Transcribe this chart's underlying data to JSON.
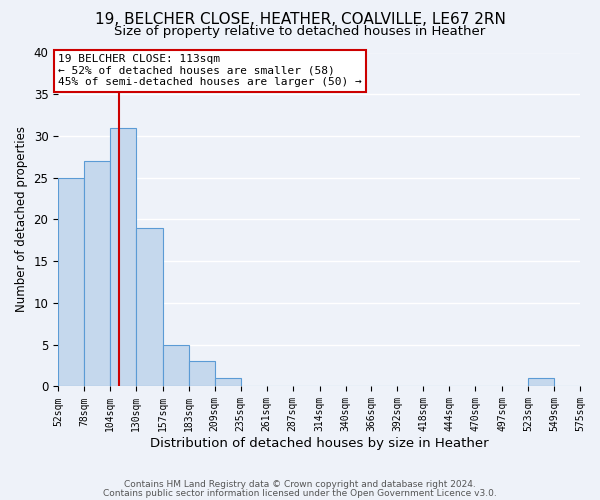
{
  "title": "19, BELCHER CLOSE, HEATHER, COALVILLE, LE67 2RN",
  "subtitle": "Size of property relative to detached houses in Heather",
  "xlabel": "Distribution of detached houses by size in Heather",
  "ylabel": "Number of detached properties",
  "footnote1": "Contains HM Land Registry data © Crown copyright and database right 2024.",
  "footnote2": "Contains public sector information licensed under the Open Government Licence v3.0.",
  "bin_edges": [
    52,
    78,
    104,
    130,
    157,
    183,
    209,
    235,
    261,
    287,
    314,
    340,
    366,
    392,
    418,
    444,
    470,
    497,
    523,
    549,
    575
  ],
  "bar_heights": [
    25,
    27,
    31,
    19,
    5,
    3,
    1,
    0,
    0,
    0,
    0,
    0,
    0,
    0,
    0,
    0,
    0,
    0,
    1,
    0
  ],
  "bar_color": "#c5d8ed",
  "bar_edgecolor": "#5b9bd5",
  "property_size": 113,
  "vline_color": "#cc0000",
  "ylim": [
    0,
    40
  ],
  "annotation_title": "19 BELCHER CLOSE: 113sqm",
  "annotation_line1": "← 52% of detached houses are smaller (58)",
  "annotation_line2": "45% of semi-detached houses are larger (50) →",
  "annotation_box_edgecolor": "#cc0000",
  "annotation_box_facecolor": "#ffffff",
  "background_color": "#eef2f9",
  "grid_color": "#ffffff",
  "title_fontsize": 11,
  "subtitle_fontsize": 9.5,
  "tick_label_fontsize": 7,
  "xlabel_fontsize": 9.5,
  "ylabel_fontsize": 8.5,
  "annotation_fontsize": 8
}
